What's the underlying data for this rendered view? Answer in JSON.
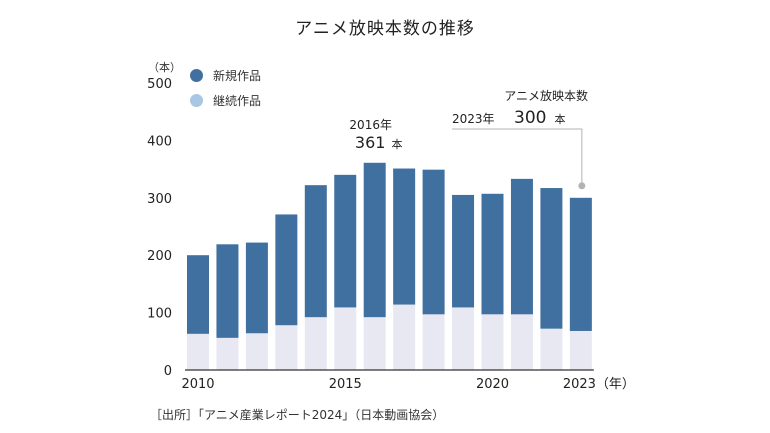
{
  "title": "アニメ放映本数の推移",
  "unit_label": "（本）",
  "source": "［出所］「アニメ産業レポート2024」（日本動画協会）",
  "colors": {
    "new": "#40709f",
    "continued": "#e8e8f3",
    "legend_continued": "#a9c6e4",
    "axis": "#333333",
    "callout": "#b3b3b3"
  },
  "chart_data": {
    "type": "bar",
    "stacked": true,
    "title": "アニメ放映本数の推移",
    "ylabel": "（本）",
    "xlabel": "（年）",
    "ylim": [
      0,
      500
    ],
    "y_ticks": [
      "0",
      "100",
      "200",
      "300",
      "400",
      "500"
    ],
    "x_tick_labels": [
      {
        "year": 2010,
        "label": "2010"
      },
      {
        "year": 2015,
        "label": "2015"
      },
      {
        "year": 2020,
        "label": "2020"
      },
      {
        "year": 2023,
        "label": "2023（年）"
      }
    ],
    "categories": [
      2010,
      2011,
      2012,
      2013,
      2014,
      2015,
      2016,
      2017,
      2018,
      2019,
      2020,
      2021,
      2022,
      2023
    ],
    "series": [
      {
        "name": "継続作品",
        "values": [
          63,
          56,
          64,
          78,
          92,
          109,
          92,
          114,
          97,
          109,
          97,
          97,
          72,
          68
        ]
      },
      {
        "name": "新規作品",
        "values": [
          137,
          163,
          158,
          193,
          230,
          231,
          269,
          237,
          252,
          196,
          210,
          236,
          245,
          232
        ]
      }
    ],
    "totals": [
      200,
      219,
      222,
      271,
      322,
      340,
      361,
      351,
      349,
      305,
      307,
      333,
      317,
      300
    ],
    "annotations": [
      {
        "year": 2016,
        "label_year": "2016年",
        "value": "361",
        "unit": "本"
      },
      {
        "year": 2023,
        "heading": "アニメ放映本数",
        "label_year": "2023年",
        "value": "300",
        "unit": "本"
      }
    ]
  }
}
